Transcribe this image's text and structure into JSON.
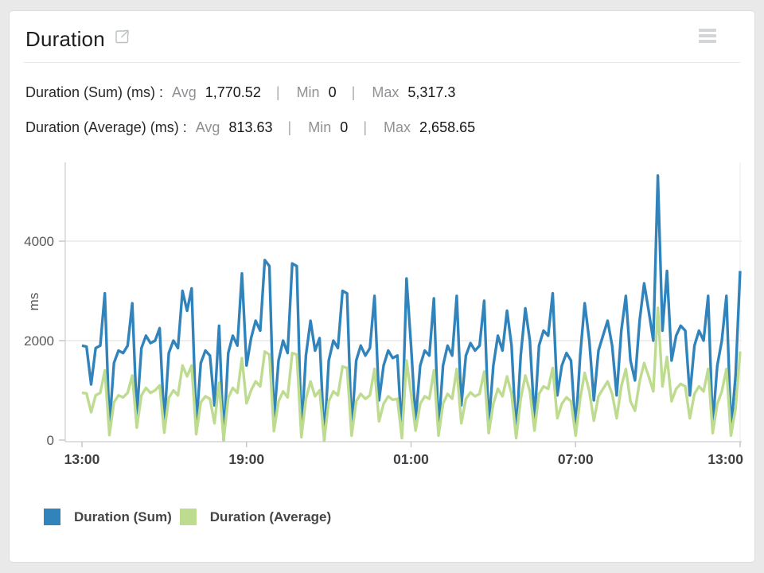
{
  "header": {
    "title": "Duration",
    "external_link_icon": "external-link",
    "menu_icon": "menu"
  },
  "stats": [
    {
      "label": "Duration (Sum) (ms) :",
      "avg_label": "Avg",
      "avg": "1,770.52",
      "sep": "|",
      "min_label": "Min",
      "min": "0",
      "max_label": "Max",
      "max": "5,317.3"
    },
    {
      "label": "Duration (Average) (ms) :",
      "avg_label": "Avg",
      "avg": "813.63",
      "sep": "|",
      "min_label": "Min",
      "min": "0",
      "max_label": "Max",
      "max": "2,658.65"
    }
  ],
  "legend": [
    {
      "label": "Duration (Sum)",
      "color": "#3184bb"
    },
    {
      "label": "Duration (Average)",
      "color": "#bedc90"
    }
  ],
  "colors": {
    "grid": "#e9e9e9",
    "axis": "#d6d6d8",
    "tick": "#c9c9cb",
    "y_label_text": "#56585b",
    "x_label_text": "#3e4043",
    "right_border": "#f0f0f0"
  },
  "chart_data": {
    "type": "line",
    "title": "",
    "xlabel": "",
    "ylabel": "ms",
    "x_ticks": [
      "13:00",
      "19:00",
      "01:00",
      "07:00",
      "13:00"
    ],
    "y_ticks": [
      0,
      2000,
      4000
    ],
    "ylim": [
      0,
      5600
    ],
    "grid": "horizontal",
    "legend_position": "bottom",
    "series": [
      {
        "name": "Duration (Sum)",
        "color": "#3184bb",
        "values": [
          1900,
          1880,
          1120,
          1850,
          1900,
          2950,
          280,
          1550,
          1800,
          1750,
          1900,
          2750,
          500,
          1850,
          2100,
          1950,
          2000,
          2250,
          350,
          1750,
          2000,
          1850,
          3000,
          2600,
          3050,
          300,
          1550,
          1800,
          1700,
          700,
          2300,
          0,
          1750,
          2100,
          1900,
          3350,
          1500,
          2050,
          2400,
          2200,
          3620,
          3500,
          400,
          1600,
          2000,
          1750,
          3550,
          3500,
          150,
          1700,
          2400,
          1800,
          2050,
          0,
          1600,
          2000,
          1850,
          3000,
          2950,
          200,
          1600,
          1900,
          1700,
          1850,
          2900,
          800,
          1500,
          1800,
          1650,
          1700,
          100,
          3250,
          1900,
          400,
          1500,
          1800,
          1700,
          2850,
          200,
          1500,
          1900,
          1700,
          2900,
          700,
          1700,
          1950,
          1800,
          1900,
          2800,
          300,
          1500,
          2100,
          1800,
          2600,
          1900,
          100,
          1700,
          2650,
          2000,
          400,
          1900,
          2200,
          2100,
          2950,
          900,
          1500,
          1750,
          1600,
          200,
          1700,
          2750,
          2000,
          800,
          1800,
          2100,
          2400,
          1900,
          900,
          2200,
          2900,
          1600,
          1200,
          2400,
          3150,
          2600,
          2000,
          5317.3,
          2200,
          3400,
          1600,
          2100,
          2300,
          2200,
          900,
          1900,
          2200,
          2000,
          2900,
          300,
          1500,
          2000,
          2900,
          200,
          1300,
          3400
        ]
      },
      {
        "name": "Duration (Average)",
        "color": "#bedc90",
        "values": [
          950,
          940,
          560,
          900,
          950,
          1400,
          100,
          760,
          900,
          860,
          950,
          1300,
          250,
          900,
          1050,
          950,
          1000,
          1100,
          150,
          850,
          1000,
          900,
          1500,
          1280,
          1500,
          120,
          760,
          880,
          830,
          340,
          1150,
          0,
          850,
          1050,
          950,
          1650,
          740,
          1000,
          1180,
          1080,
          1780,
          1720,
          180,
          780,
          980,
          860,
          1750,
          1720,
          60,
          830,
          1180,
          880,
          1000,
          0,
          780,
          980,
          900,
          1480,
          1450,
          90,
          780,
          930,
          830,
          900,
          1430,
          380,
          730,
          880,
          810,
          830,
          40,
          1600,
          930,
          190,
          730,
          880,
          830,
          1400,
          90,
          730,
          930,
          830,
          1430,
          340,
          830,
          960,
          880,
          930,
          1380,
          140,
          730,
          1030,
          880,
          1280,
          930,
          40,
          830,
          1300,
          980,
          190,
          930,
          1080,
          1030,
          1450,
          440,
          730,
          860,
          780,
          90,
          830,
          1350,
          980,
          390,
          880,
          1030,
          1180,
          930,
          440,
          1080,
          1430,
          780,
          590,
          1180,
          1550,
          1280,
          980,
          2658.65,
          1080,
          1670,
          780,
          1030,
          1130,
          1080,
          440,
          930,
          1080,
          980,
          1430,
          140,
          730,
          980,
          1430,
          90,
          640,
          1780
        ]
      }
    ]
  }
}
